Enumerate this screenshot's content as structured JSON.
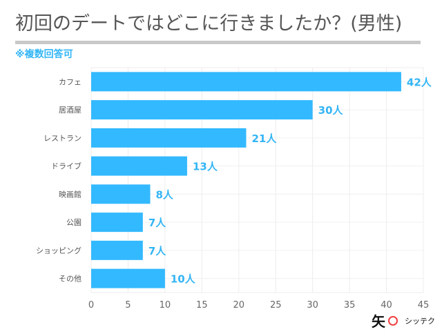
{
  "title": "初回のデートではどこに行きましたか？(男性)",
  "note": "※複数回答可",
  "logo_text": "矢 シッテク",
  "chart_data": {
    "type": "bar",
    "orientation": "horizontal",
    "categories": [
      "カフェ",
      "居酒屋",
      "レストラン",
      "ドライブ",
      "映画館",
      "公園",
      "ショッピング",
      "その他"
    ],
    "values": [
      42,
      30,
      21,
      13,
      8,
      7,
      7,
      10
    ],
    "data_labels": [
      "42人",
      "30人",
      "21人",
      "13人",
      "8人",
      "7人",
      "7人",
      "10人"
    ],
    "xlim": [
      0,
      45
    ],
    "xticks": [
      "0",
      "5",
      "10",
      "15",
      "20",
      "25",
      "30",
      "35",
      "40",
      "45"
    ],
    "grid": true,
    "bar_color": "#33b9ff",
    "label_color": "#33b5f5"
  }
}
